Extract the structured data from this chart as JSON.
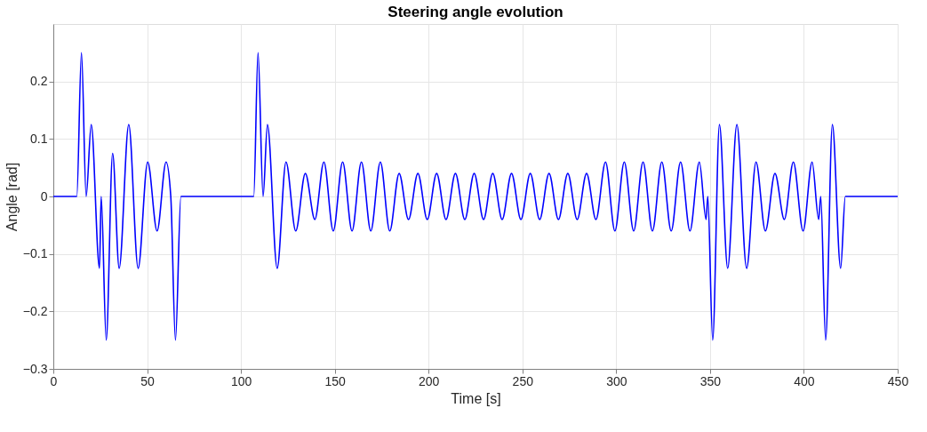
{
  "chart_data": {
    "type": "line",
    "title": "Steering angle evolution",
    "xlabel": "Time [s]",
    "ylabel": "Angle [rad]",
    "xlim": [
      0,
      450
    ],
    "xticks": [
      0,
      50,
      100,
      150,
      200,
      250,
      300,
      350,
      400,
      450
    ],
    "ylim": [
      -0.3,
      0.3
    ],
    "yticks": [
      -0.3,
      -0.2,
      -0.1,
      0,
      0.1,
      0.2
    ],
    "grid": true,
    "marker": "none",
    "line_style": "solid",
    "series": [
      {
        "color": "#0000ff",
        "x": [
          0,
          12.5,
          15,
          17.5,
          20.2,
          24.6,
          25.5,
          28.2,
          31.6,
          35.1,
          40.2,
          45.2,
          50.3,
          55.3,
          60.1,
          62.6,
          65.1,
          68.0,
          106.8,
          109.1,
          111.8,
          114.1,
          119.3,
          124.0,
          129.2,
          134.3,
          139.4,
          144.2,
          149.2,
          154.2,
          159.2,
          164.2,
          169.2,
          174.3,
          179.3,
          184.3,
          189.3,
          194.3,
          199.3,
          204.3,
          209.3,
          214.3,
          219.3,
          224.3,
          229.3,
          234.2,
          239.2,
          244.2,
          249.2,
          254.2,
          259.2,
          264.2,
          269.2,
          274.2,
          279.2,
          284.2,
          289.2,
          294.3,
          299.3,
          304.3,
          309.3,
          314.3,
          319.3,
          324.3,
          329.3,
          334.3,
          339.3,
          344.3,
          347.9,
          348.8,
          351.4,
          355.0,
          359.4,
          364.3,
          369.5,
          374.5,
          379.5,
          384.6,
          389.6,
          394.4,
          399.6,
          404.4,
          407.9,
          409.0,
          411.6,
          415.2,
          419.6,
          422.1,
          450
        ],
        "values": [
          0,
          0,
          0.25,
          0,
          0.125,
          -0.125,
          0,
          -0.25,
          0.075,
          -0.125,
          0.125,
          -0.125,
          0.06,
          -0.06,
          0.06,
          0,
          -0.25,
          0,
          0,
          0.25,
          0,
          0.125,
          -0.125,
          0.06,
          -0.06,
          0.04,
          -0.04,
          0.06,
          -0.06,
          0.06,
          -0.06,
          0.06,
          -0.06,
          0.06,
          -0.06,
          0.04,
          -0.04,
          0.04,
          -0.04,
          0.04,
          -0.04,
          0.04,
          -0.04,
          0.04,
          -0.04,
          0.04,
          -0.04,
          0.04,
          -0.04,
          0.04,
          -0.04,
          0.04,
          -0.04,
          0.04,
          -0.04,
          0.04,
          -0.04,
          0.06,
          -0.06,
          0.06,
          -0.06,
          0.06,
          -0.06,
          0.06,
          -0.06,
          0.06,
          -0.06,
          0.06,
          -0.04,
          0,
          -0.25,
          0.125,
          -0.125,
          0.125,
          -0.125,
          0.06,
          -0.06,
          0.04,
          -0.04,
          0.06,
          -0.06,
          0.06,
          -0.04,
          0,
          -0.25,
          0.125,
          -0.125,
          0,
          0
        ]
      }
    ]
  }
}
